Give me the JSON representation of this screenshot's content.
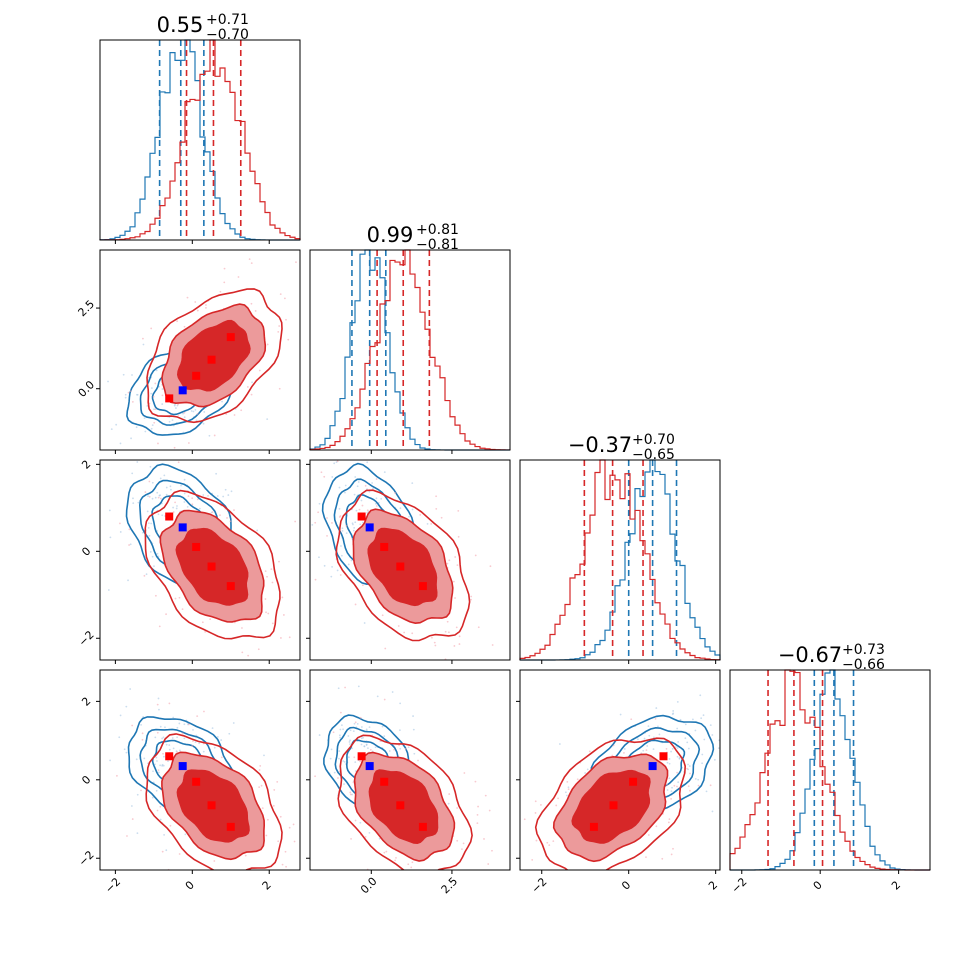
{
  "colors": {
    "blue": "#1f77b4",
    "red": "#d62728",
    "red_fill_dark": "#d62728",
    "red_fill_light": "#ec9a9b",
    "marker_red": "#ff0000",
    "marker_blue": "#0000ff"
  },
  "chart_data": {
    "type": "corner",
    "n_params": 4,
    "ranges": [
      [
        -2.4,
        2.8
      ],
      [
        -1.9,
        4.3
      ],
      [
        -2.5,
        2.1
      ],
      [
        -2.3,
        2.8
      ]
    ],
    "ticks": [
      {
        "values": [
          -2,
          0,
          2
        ],
        "labels": [
          "−2",
          "0",
          "2"
        ]
      },
      {
        "values": [
          0.0,
          2.5
        ],
        "labels": [
          "0.0",
          "2.5"
        ]
      },
      {
        "values": [
          -2,
          0,
          2
        ],
        "labels": [
          "−2",
          "0",
          "2"
        ]
      },
      {
        "values": [
          -2,
          0,
          2
        ],
        "labels": [
          "−2",
          "0",
          "2"
        ]
      }
    ],
    "titles": [
      {
        "value": "0.55",
        "plus": "+0.71",
        "minus": "−0.70"
      },
      {
        "value": "0.99",
        "plus": "+0.81",
        "minus": "−0.81"
      },
      {
        "value": "−0.37",
        "plus": "+0.70",
        "minus": "−0.65"
      },
      {
        "value": "−0.67",
        "plus": "+0.73",
        "minus": "−0.66"
      }
    ],
    "series": [
      {
        "color": "blue",
        "mean": [
          -0.3,
          -0.05,
          0.55,
          0.35
        ],
        "std": [
          0.55,
          0.55,
          0.55,
          0.5
        ],
        "quantiles": [
          [
            -0.85,
            -0.3,
            0.3
          ],
          [
            -0.6,
            -0.05,
            0.45
          ],
          [
            0.0,
            0.55,
            1.1
          ],
          [
            -0.15,
            0.35,
            0.85
          ]
        ],
        "correlations": {
          "0-1": 0.3,
          "0-2": -0.3,
          "1-2": -0.3,
          "0-3": -0.3,
          "1-3": -0.3,
          "2-3": 0.3
        },
        "filled": false
      },
      {
        "color": "red",
        "mean": [
          0.55,
          0.99,
          -0.37,
          -0.67
        ],
        "std": [
          0.7,
          0.81,
          0.67,
          0.7
        ],
        "quantiles": [
          [
            -0.15,
            0.55,
            1.26
          ],
          [
            0.18,
            0.99,
            1.8
          ],
          [
            -1.02,
            -0.37,
            0.33
          ],
          [
            -1.33,
            -0.67,
            0.06
          ]
        ],
        "correlations": {
          "0-1": 0.4,
          "0-2": -0.4,
          "1-2": -0.4,
          "0-3": -0.4,
          "1-3": -0.4,
          "2-3": 0.4
        },
        "filled": true
      }
    ],
    "markers_red": [
      [
        -0.6,
        -0.3
      ],
      [
        0.1,
        0.4
      ],
      [
        0.5,
        0.9
      ],
      [
        1.0,
        1.6
      ],
      [
        0.5,
        0.1
      ]
    ],
    "marker_points": {
      "red": [
        [
          -0.6,
          -0.3,
          0.8,
          0.6
        ],
        [
          0.1,
          0.4,
          0.1,
          -0.05
        ],
        [
          0.5,
          0.9,
          -0.35,
          -0.65
        ],
        [
          1.0,
          1.6,
          -0.8,
          -1.2
        ]
      ],
      "blue": [
        [
          -0.25,
          -0.05,
          0.55,
          0.35
        ]
      ]
    }
  }
}
